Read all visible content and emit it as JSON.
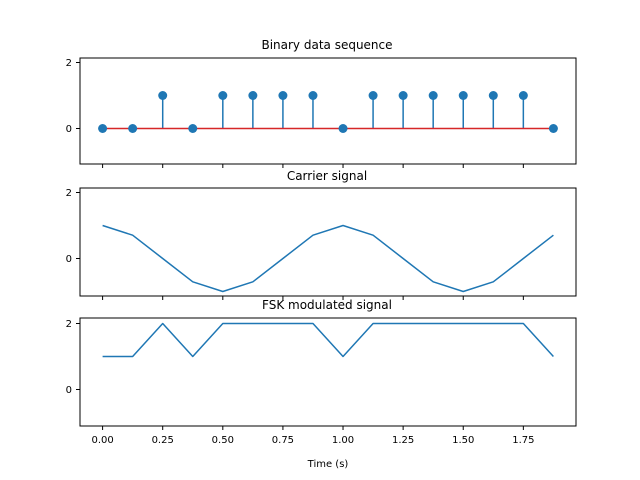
{
  "chart_data": [
    {
      "type": "stem",
      "title": "Binary data sequence",
      "x": [
        0,
        0.125,
        0.25,
        0.375,
        0.5,
        0.625,
        0.75,
        0.875,
        1.0,
        1.125,
        1.25,
        1.375,
        1.5,
        1.625,
        1.75,
        1.875
      ],
      "y": [
        0,
        0,
        1,
        0,
        1,
        1,
        1,
        1,
        0,
        1,
        1,
        1,
        1,
        1,
        1,
        0
      ],
      "yticks": [
        "0",
        "2"
      ],
      "ylim": [
        -1.1,
        2.1
      ],
      "xlim": [
        -0.094,
        1.969
      ],
      "show_xticklabels": false,
      "colors": {
        "stem": "#1f77b4",
        "baseline": "#d62728"
      }
    },
    {
      "type": "line",
      "title": "Carrier signal",
      "x": [
        0,
        0.125,
        0.25,
        0.375,
        0.5,
        0.625,
        0.75,
        0.875,
        1.0,
        1.125,
        1.25,
        1.375,
        1.5,
        1.625,
        1.75,
        1.875
      ],
      "y": [
        1,
        0.707,
        0,
        -0.707,
        -1,
        -0.707,
        0,
        0.707,
        1,
        0.707,
        0,
        -0.707,
        -1,
        -0.707,
        0,
        0.707
      ],
      "yticks": [
        "0",
        "2"
      ],
      "ylim": [
        -1.1,
        2.1
      ],
      "xlim": [
        -0.094,
        1.969
      ],
      "show_xticklabels": false,
      "colors": {
        "line": "#1f77b4"
      }
    },
    {
      "type": "line",
      "title": "FSK modulated signal",
      "x": [
        0,
        0.125,
        0.25,
        0.375,
        0.5,
        0.625,
        0.75,
        0.875,
        1.0,
        1.125,
        1.25,
        1.375,
        1.5,
        1.625,
        1.75,
        1.875
      ],
      "y": [
        1,
        1,
        2,
        1,
        2,
        2,
        2,
        2,
        1,
        2,
        2,
        2,
        2,
        2,
        2,
        1
      ],
      "yticks": [
        "0",
        "2"
      ],
      "ylim": [
        -1.1,
        2.1
      ],
      "xlim": [
        -0.094,
        1.969
      ],
      "show_xticklabels": true,
      "xticks": [
        "0.00",
        "0.25",
        "0.50",
        "0.75",
        "1.00",
        "1.25",
        "1.50",
        "1.75"
      ],
      "xlabel": "Time (s)",
      "colors": {
        "line": "#1f77b4"
      }
    }
  ]
}
